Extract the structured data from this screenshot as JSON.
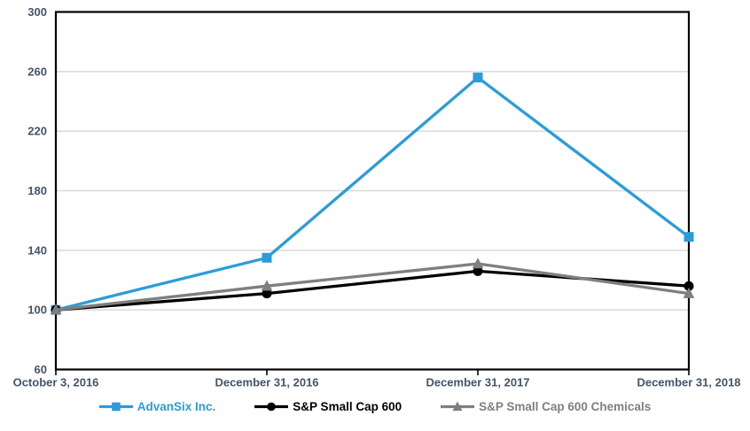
{
  "chart_data": {
    "type": "line",
    "title": "",
    "x_categories": [
      "October 3, 2016",
      "December 31, 2016",
      "December 31, 2017",
      "December 31, 2018"
    ],
    "y_ticks": [
      60,
      100,
      140,
      180,
      220,
      260,
      300
    ],
    "ylim": [
      60,
      300
    ],
    "y_tick_step": 40,
    "grid": "horizontal-major-only",
    "legend_position": "bottom-center",
    "plot_border": "black-box",
    "series": [
      {
        "name": "AdvanSix Inc.",
        "color": "#2B9CD8",
        "marker": "square",
        "values": [
          100,
          135,
          256,
          149
        ]
      },
      {
        "name": "S&P Small Cap 600",
        "color": "#000000",
        "marker": "circle",
        "values": [
          100,
          111,
          126,
          116
        ]
      },
      {
        "name": "S&P Small Cap 600 Chemicals",
        "color": "#7F7F7F",
        "marker": "triangle",
        "values": [
          100,
          116,
          131,
          111
        ]
      }
    ]
  },
  "colors": {
    "background": "#FFFFFF",
    "gridline": "#D9D9D9",
    "axis_line": "#000000",
    "axis_label": "#44546A",
    "advansix_blue": "#2B9CD8",
    "sp600_black": "#000000",
    "chemicals_gray": "#7F7F7F"
  }
}
